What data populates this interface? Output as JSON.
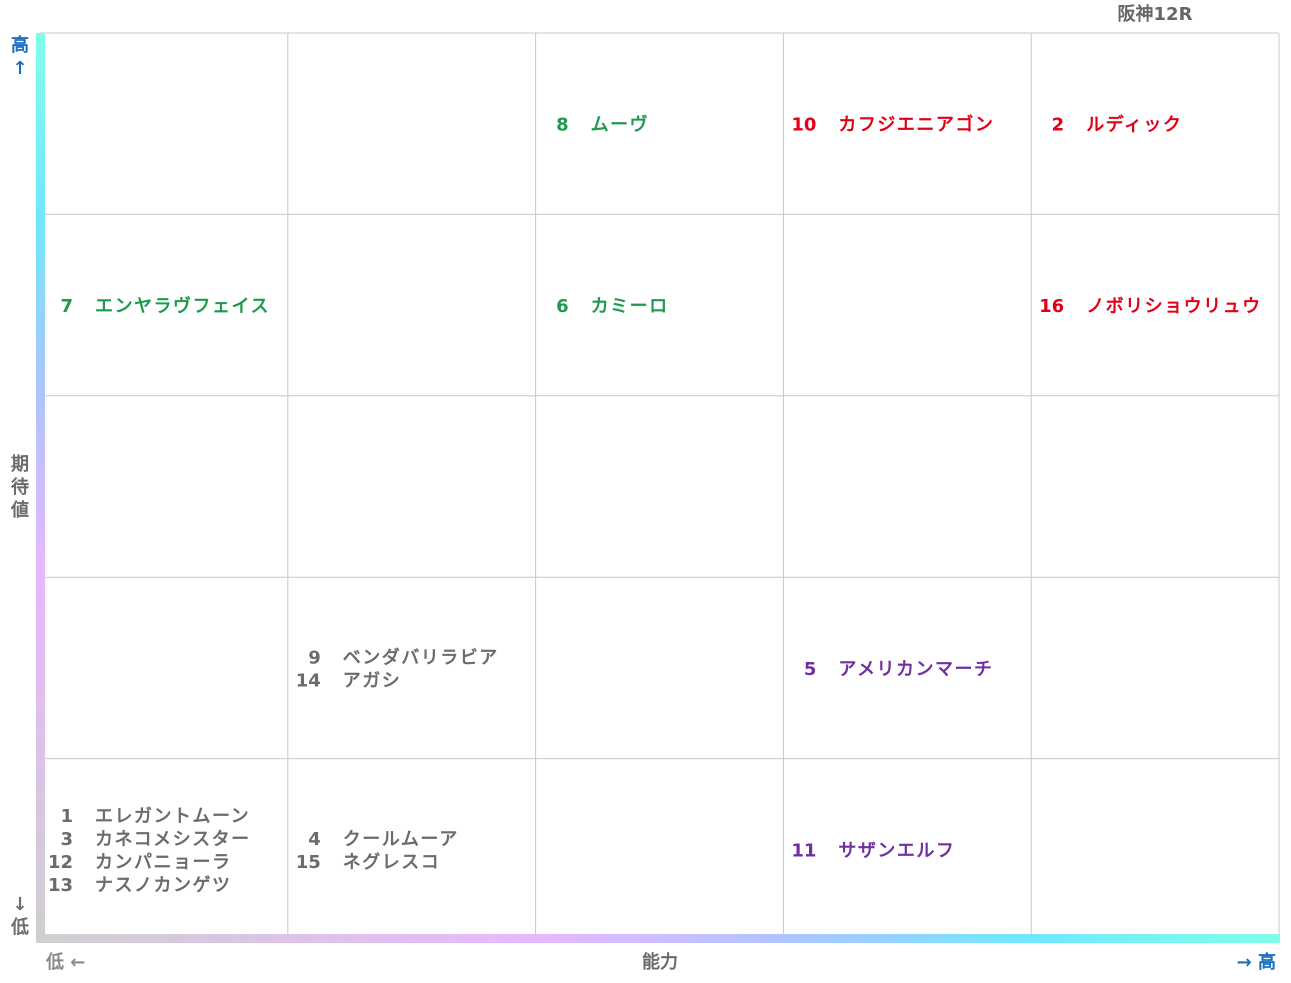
{
  "title": "阪神12R",
  "y_axis": {
    "high": "高↑",
    "label": "期待値",
    "low": "↓低"
  },
  "x_axis": {
    "low": "低 ←",
    "label": "能力",
    "high": "→ 高"
  },
  "grid": {
    "rows": [
      [
        [],
        [],
        [
          {
            "num": 8,
            "name": "ムーヴ",
            "color": "#1e9a4e"
          }
        ],
        [
          {
            "num": 10,
            "name": "カフジエニアゴン",
            "color": "#e00018"
          }
        ],
        [
          {
            "num": 2,
            "name": "ルディック",
            "color": "#e00018"
          }
        ]
      ],
      [
        [
          {
            "num": 7,
            "name": "エンヤラヴフェイス",
            "color": "#1e9a4e"
          }
        ],
        [],
        [
          {
            "num": 6,
            "name": "カミーロ",
            "color": "#1e9a4e"
          }
        ],
        [],
        [
          {
            "num": 16,
            "name": "ノボリショウリュウ",
            "color": "#e00018"
          }
        ]
      ],
      [
        [],
        [],
        [],
        [],
        []
      ],
      [
        [],
        [
          {
            "num": 9,
            "name": "ベンダバリラビア",
            "color": "#6b6b6b"
          },
          {
            "num": 14,
            "name": "アガシ",
            "color": "#6b6b6b"
          }
        ],
        [],
        [
          {
            "num": 5,
            "name": "アメリカンマーチ",
            "color": "#7030a0"
          }
        ],
        []
      ],
      [
        [
          {
            "num": 1,
            "name": "エレガントムーン",
            "color": "#6b6b6b"
          },
          {
            "num": 3,
            "name": "カネコメシスター",
            "color": "#6b6b6b"
          },
          {
            "num": 12,
            "name": "カンパニョーラ",
            "color": "#6b6b6b"
          },
          {
            "num": 13,
            "name": "ナスノカンゲツ",
            "color": "#6b6b6b"
          }
        ],
        [
          {
            "num": 4,
            "name": "クールムーア",
            "color": "#6b6b6b"
          },
          {
            "num": 15,
            "name": "ネグレスコ",
            "color": "#6b6b6b"
          }
        ],
        [],
        [
          {
            "num": 11,
            "name": "サザンエルフ",
            "color": "#7030a0"
          }
        ],
        []
      ]
    ]
  }
}
